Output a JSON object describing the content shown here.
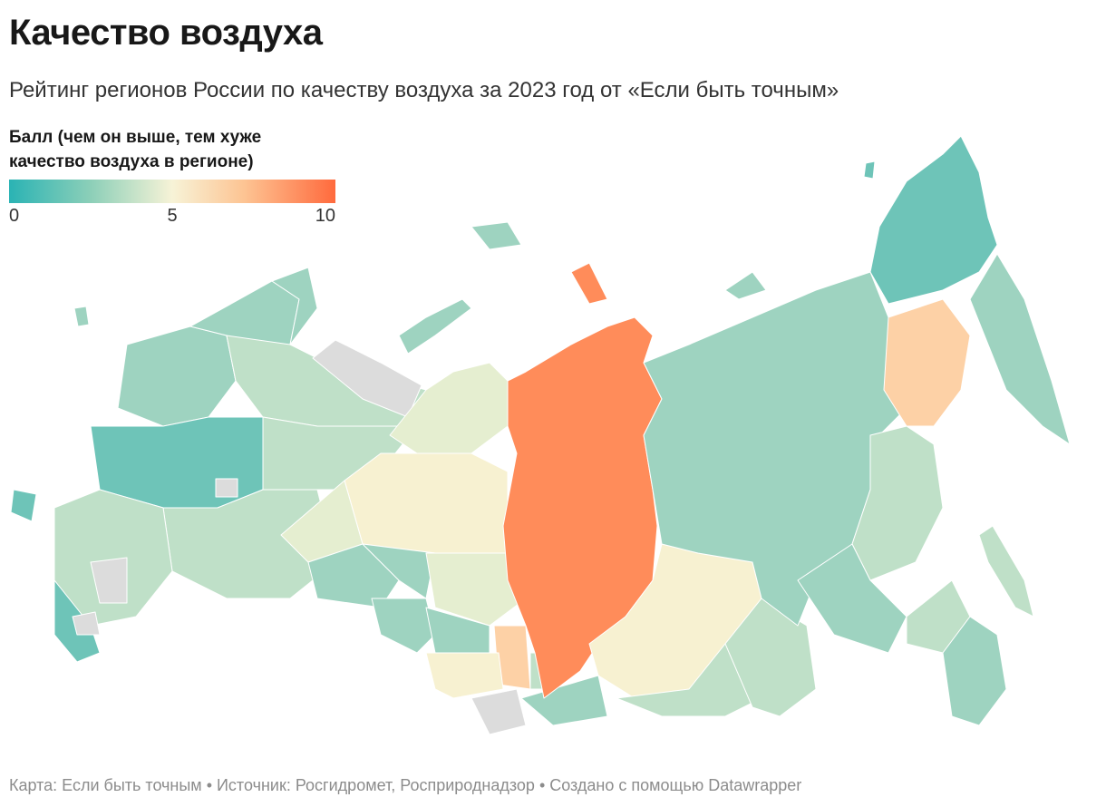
{
  "title": "Качество воздуха",
  "subtitle": "Рейтинг регионов России по качеству воздуха за 2023 год от «Если быть точным»",
  "legend": {
    "title_line1": "Балл (чем он выше, тем хуже",
    "title_line2": "качество воздуха в регионе)",
    "min_label": "0",
    "mid_label": "5",
    "max_label": "10",
    "scale": [
      0,
      10
    ],
    "colors": [
      "#2ab3b4",
      "#8ccfb8",
      "#f7f3d7",
      "#fdc493",
      "#ff6a3d"
    ]
  },
  "colors": {
    "no_data": "#dcdcdc",
    "teal": "#6ec4b8",
    "mint": "#9ed3c0",
    "light_green": "#bfe0c8",
    "pale": "#e5eed0",
    "cream": "#f7f1d1",
    "peach": "#fdd1a6",
    "orange": "#ff8c5a"
  },
  "footer": "Карта: Если быть точным • Источник: Росгидромет, Росприроднадзор • Создано с помощью Datawrapper"
}
